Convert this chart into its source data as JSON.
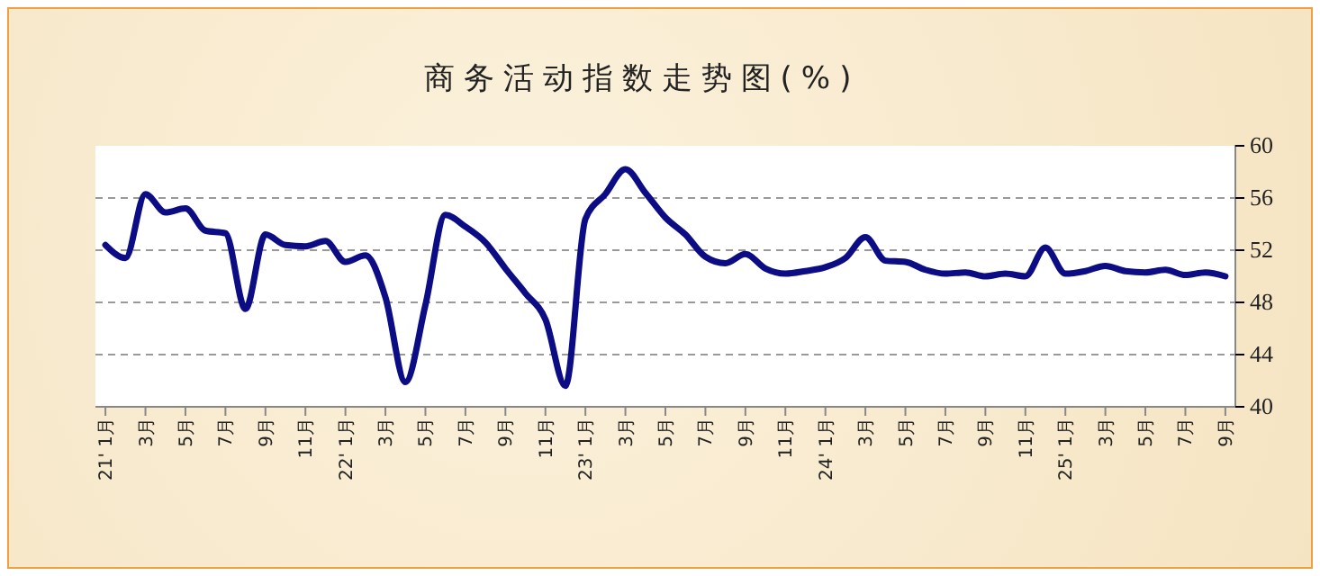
{
  "chart_data": {
    "type": "line",
    "title": "商务活动指数走势图(%)",
    "categories": [
      "21' 1月",
      null,
      "3月",
      null,
      "5月",
      null,
      "7月",
      null,
      "9月",
      null,
      "11月",
      null,
      "22' 1月",
      null,
      "3月",
      null,
      "5月",
      null,
      "7月",
      null,
      "9月",
      null,
      "11月",
      null,
      "23' 1月",
      null,
      "3月",
      null,
      "5月",
      null,
      "7月",
      null,
      "9月",
      null,
      "11月",
      null,
      "24' 1月",
      null,
      "3月",
      null,
      "5月",
      null,
      "7月",
      null,
      "9月",
      null,
      "11月",
      null,
      "25' 1月",
      null,
      "3月",
      null,
      "5月",
      null,
      "7月",
      null,
      "9月"
    ],
    "series": [
      {
        "color": "#0c0c84",
        "values": [
          52.4,
          51.4,
          56.3,
          54.9,
          55.2,
          53.5,
          53.3,
          47.5,
          53.2,
          52.4,
          52.3,
          52.7,
          51.1,
          51.6,
          48.4,
          41.9,
          47.8,
          54.7,
          53.8,
          52.6,
          50.6,
          48.7,
          46.7,
          41.6,
          54.4,
          56.3,
          58.2,
          56.4,
          54.5,
          53.2,
          51.5,
          51.0,
          51.7,
          50.6,
          50.2,
          50.4,
          50.7,
          51.4,
          53.0,
          51.2,
          51.1,
          50.5,
          50.2,
          50.3,
          50.0,
          50.2,
          50.0,
          52.2,
          50.2,
          50.4,
          50.8,
          50.4,
          50.3,
          50.5,
          50.1,
          50.3,
          50.0
        ]
      }
    ],
    "ylim": [
      40,
      60
    ],
    "yticks": [
      40,
      44,
      48,
      52,
      56,
      60
    ],
    "grid": "y",
    "marker": "none",
    "line_style": "solid"
  }
}
